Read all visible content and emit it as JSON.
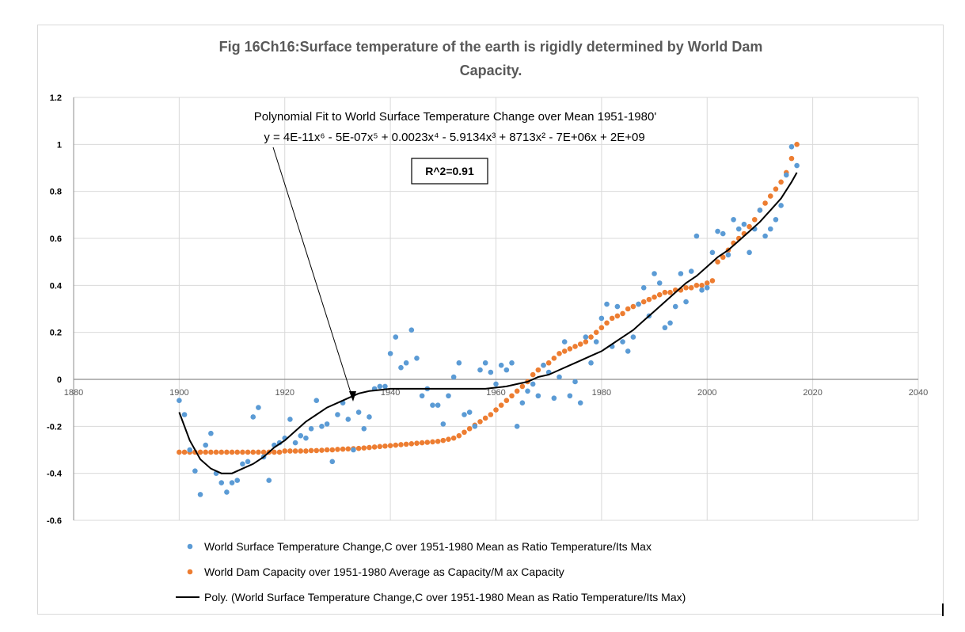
{
  "chart_data": {
    "type": "scatter",
    "title_line1": "Fig 16Ch16:Surface temperature of the earth is rigidly determined by World Dam",
    "title_line2": "Capacity.",
    "xlim": [
      1880,
      2040
    ],
    "ylim": [
      -0.6,
      1.2
    ],
    "x_ticks": [
      "1880",
      "1900",
      "1920",
      "1940",
      "1960",
      "1980",
      "2000",
      "2020",
      "2040"
    ],
    "y_ticks": [
      "-0.6",
      "-0.4",
      "-0.2",
      "0",
      "0.2",
      "0.4",
      "0.6",
      "0.8",
      "1",
      "1.2"
    ],
    "grid": true,
    "legend_position": "bottom",
    "annotation_line1": "Polynomial Fit to World Surface Temperature Change over Mean  1951-1980'",
    "annotation_line2": "y = 4E-11x⁶ - 5E-07x⁵ + 0.0023x⁴ - 5.9134x³ + 8713x² - 7E+06x + 2E+09",
    "r_squared": "R^2=0.91",
    "series": [
      {
        "name": "World Surface Temperature Change,C over 1951-1980 Mean as Ratio Temperature/Its Max",
        "color": "#5b9bd5",
        "x": [
          1900,
          1901,
          1902,
          1903,
          1904,
          1905,
          1906,
          1907,
          1908,
          1909,
          1910,
          1911,
          1912,
          1913,
          1914,
          1915,
          1916,
          1917,
          1918,
          1919,
          1920,
          1921,
          1922,
          1923,
          1924,
          1925,
          1926,
          1927,
          1928,
          1929,
          1930,
          1931,
          1932,
          1933,
          1934,
          1935,
          1936,
          1937,
          1938,
          1939,
          1940,
          1941,
          1942,
          1943,
          1944,
          1945,
          1946,
          1947,
          1948,
          1949,
          1950,
          1951,
          1952,
          1953,
          1954,
          1955,
          1956,
          1957,
          1958,
          1959,
          1960,
          1961,
          1962,
          1963,
          1964,
          1965,
          1966,
          1967,
          1968,
          1969,
          1970,
          1971,
          1972,
          1973,
          1974,
          1975,
          1976,
          1977,
          1978,
          1979,
          1980,
          1981,
          1982,
          1983,
          1984,
          1985,
          1986,
          1987,
          1988,
          1989,
          1990,
          1991,
          1992,
          1993,
          1994,
          1995,
          1996,
          1997,
          1998,
          1999,
          2000,
          2001,
          2002,
          2003,
          2004,
          2005,
          2006,
          2007,
          2008,
          2009,
          2010,
          2011,
          2012,
          2013,
          2014,
          2015,
          2016,
          2017
        ],
        "y": [
          -0.09,
          -0.15,
          -0.3,
          -0.39,
          -0.49,
          -0.28,
          -0.23,
          -0.4,
          -0.44,
          -0.48,
          -0.44,
          -0.43,
          -0.36,
          -0.35,
          -0.16,
          -0.12,
          -0.33,
          -0.43,
          -0.28,
          -0.27,
          -0.25,
          -0.17,
          -0.27,
          -0.24,
          -0.25,
          -0.21,
          -0.09,
          -0.2,
          -0.19,
          -0.35,
          -0.15,
          -0.1,
          -0.17,
          -0.3,
          -0.14,
          -0.21,
          -0.16,
          -0.04,
          -0.03,
          -0.03,
          0.11,
          0.18,
          0.05,
          0.07,
          0.21,
          0.09,
          -0.07,
          -0.04,
          -0.11,
          -0.11,
          -0.19,
          -0.07,
          0.01,
          0.07,
          -0.15,
          -0.14,
          -0.2,
          0.04,
          0.07,
          0.03,
          -0.02,
          0.06,
          0.04,
          0.07,
          -0.2,
          -0.1,
          -0.05,
          -0.02,
          -0.07,
          0.06,
          0.03,
          -0.08,
          0.01,
          0.16,
          -0.07,
          -0.01,
          -0.1,
          0.18,
          0.07,
          0.16,
          0.26,
          0.32,
          0.14,
          0.31,
          0.16,
          0.12,
          0.18,
          0.32,
          0.39,
          0.27,
          0.45,
          0.41,
          0.22,
          0.24,
          0.31,
          0.45,
          0.33,
          0.46,
          0.61,
          0.38,
          0.39,
          0.54,
          0.63,
          0.62,
          0.53,
          0.68,
          0.64,
          0.66,
          0.54,
          0.64,
          0.72,
          0.61,
          0.64,
          0.68,
          0.74,
          0.87,
          0.99,
          0.91
        ]
      },
      {
        "name": "World Dam Capacity over 1951-1980 Average as Capacity/M ax Capacity",
        "color": "#ed7d31",
        "x": [
          1900,
          1901,
          1902,
          1903,
          1904,
          1905,
          1906,
          1907,
          1908,
          1909,
          1910,
          1911,
          1912,
          1913,
          1914,
          1915,
          1916,
          1917,
          1918,
          1919,
          1920,
          1921,
          1922,
          1923,
          1924,
          1925,
          1926,
          1927,
          1928,
          1929,
          1930,
          1931,
          1932,
          1933,
          1934,
          1935,
          1936,
          1937,
          1938,
          1939,
          1940,
          1941,
          1942,
          1943,
          1944,
          1945,
          1946,
          1947,
          1948,
          1949,
          1950,
          1951,
          1952,
          1953,
          1954,
          1955,
          1956,
          1957,
          1958,
          1959,
          1960,
          1961,
          1962,
          1963,
          1964,
          1965,
          1966,
          1967,
          1968,
          1969,
          1970,
          1971,
          1972,
          1973,
          1974,
          1975,
          1976,
          1977,
          1978,
          1979,
          1980,
          1981,
          1982,
          1983,
          1984,
          1985,
          1986,
          1987,
          1988,
          1989,
          1990,
          1991,
          1992,
          1993,
          1994,
          1995,
          1996,
          1997,
          1998,
          1999,
          2000,
          2001,
          2002,
          2003,
          2004,
          2005,
          2006,
          2007,
          2008,
          2009,
          2010,
          2011,
          2012,
          2013,
          2014,
          2015,
          2016,
          2017
        ],
        "y": [
          -0.31,
          -0.31,
          -0.31,
          -0.31,
          -0.31,
          -0.31,
          -0.31,
          -0.31,
          -0.31,
          -0.31,
          -0.31,
          -0.31,
          -0.31,
          -0.31,
          -0.31,
          -0.31,
          -0.31,
          -0.31,
          -0.31,
          -0.31,
          -0.305,
          -0.305,
          -0.305,
          -0.305,
          -0.305,
          -0.303,
          -0.303,
          -0.302,
          -0.3,
          -0.3,
          -0.298,
          -0.297,
          -0.296,
          -0.295,
          -0.294,
          -0.292,
          -0.29,
          -0.288,
          -0.286,
          -0.284,
          -0.282,
          -0.28,
          -0.278,
          -0.276,
          -0.274,
          -0.272,
          -0.27,
          -0.268,
          -0.266,
          -0.264,
          -0.26,
          -0.255,
          -0.25,
          -0.24,
          -0.225,
          -0.21,
          -0.195,
          -0.18,
          -0.165,
          -0.15,
          -0.13,
          -0.11,
          -0.09,
          -0.07,
          -0.05,
          -0.03,
          -0.01,
          0.02,
          0.04,
          0.06,
          0.07,
          0.09,
          0.11,
          0.12,
          0.13,
          0.14,
          0.15,
          0.16,
          0.18,
          0.2,
          0.22,
          0.24,
          0.26,
          0.27,
          0.28,
          0.3,
          0.31,
          0.32,
          0.33,
          0.34,
          0.35,
          0.36,
          0.37,
          0.37,
          0.38,
          0.38,
          0.39,
          0.39,
          0.4,
          0.4,
          0.41,
          0.42,
          0.5,
          0.52,
          0.55,
          0.58,
          0.6,
          0.62,
          0.65,
          0.68,
          0.72,
          0.75,
          0.78,
          0.81,
          0.84,
          0.88,
          0.94,
          1.0
        ]
      },
      {
        "name": "Poly. (World Surface Temperature Change,C over 1951-1980 Mean as Ratio Temperature/Its Max)",
        "color": "#000000",
        "type": "line",
        "x": [
          1900,
          1902,
          1904,
          1906,
          1908,
          1910,
          1912,
          1914,
          1916,
          1918,
          1920,
          1922,
          1924,
          1926,
          1928,
          1930,
          1932,
          1934,
          1936,
          1938,
          1940,
          1942,
          1944,
          1946,
          1948,
          1950,
          1952,
          1954,
          1956,
          1958,
          1960,
          1962,
          1964,
          1966,
          1968,
          1970,
          1972,
          1974,
          1976,
          1978,
          1980,
          1982,
          1984,
          1986,
          1988,
          1990,
          1992,
          1994,
          1996,
          1998,
          2000,
          2002,
          2004,
          2006,
          2008,
          2010,
          2012,
          2014,
          2016,
          2017
        ],
        "y": [
          -0.14,
          -0.26,
          -0.34,
          -0.38,
          -0.4,
          -0.4,
          -0.38,
          -0.36,
          -0.33,
          -0.29,
          -0.26,
          -0.22,
          -0.18,
          -0.15,
          -0.12,
          -0.1,
          -0.08,
          -0.06,
          -0.05,
          -0.045,
          -0.04,
          -0.04,
          -0.04,
          -0.04,
          -0.04,
          -0.04,
          -0.04,
          -0.04,
          -0.04,
          -0.04,
          -0.035,
          -0.03,
          -0.02,
          -0.01,
          0.01,
          0.02,
          0.04,
          0.06,
          0.08,
          0.1,
          0.12,
          0.15,
          0.18,
          0.21,
          0.25,
          0.29,
          0.33,
          0.37,
          0.41,
          0.44,
          0.48,
          0.52,
          0.55,
          0.59,
          0.63,
          0.67,
          0.72,
          0.77,
          0.84,
          0.88
        ]
      }
    ]
  }
}
